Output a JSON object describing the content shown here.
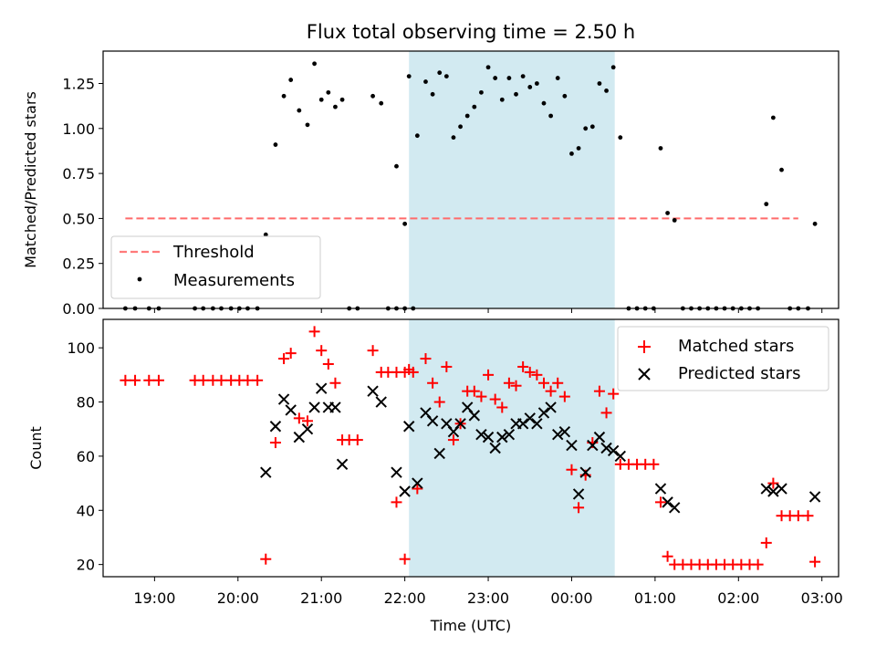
{
  "title": "Flux total observing time = 2.50 h",
  "colors": {
    "shade": "#add8e6",
    "threshold": "#ff6b6b",
    "measurement": "#000000",
    "matched": "#ff0000",
    "predicted": "#000000"
  },
  "chart_data": [
    {
      "type": "scatter",
      "ylabel": "Matched/Predicted stars",
      "xlabel": "",
      "xlim": [
        "18:23",
        "03:12"
      ],
      "ylim": [
        0,
        1.43
      ],
      "yticks": [
        "0.00",
        "0.25",
        "0.50",
        "0.75",
        "1.00",
        "1.25"
      ],
      "grid": false,
      "legend_position": "lower-left",
      "shaded_span": [
        "22:03",
        "00:31"
      ],
      "threshold": {
        "name": "Threshold",
        "value": 0.5,
        "x_range": [
          "18:39",
          "02:43"
        ]
      },
      "series": [
        {
          "name": "Measurements",
          "points": [
            [
              "18:39",
              0
            ],
            [
              "18:46",
              0
            ],
            [
              "18:56",
              0
            ],
            [
              "19:03",
              0
            ],
            [
              "19:29",
              0
            ],
            [
              "19:35",
              0
            ],
            [
              "19:42",
              0
            ],
            [
              "19:48",
              0
            ],
            [
              "19:55",
              0
            ],
            [
              "20:01",
              0
            ],
            [
              "20:07",
              0
            ],
            [
              "20:14",
              0
            ],
            [
              "20:20",
              0.41
            ],
            [
              "20:27",
              0.91
            ],
            [
              "20:33",
              1.18
            ],
            [
              "20:38",
              1.27
            ],
            [
              "20:44",
              1.1
            ],
            [
              "20:50",
              1.02
            ],
            [
              "20:55",
              1.36
            ],
            [
              "21:00",
              1.16
            ],
            [
              "21:05",
              1.2
            ],
            [
              "21:10",
              1.12
            ],
            [
              "21:15",
              1.16
            ],
            [
              "21:20",
              0
            ],
            [
              "21:26",
              0
            ],
            [
              "21:37",
              1.18
            ],
            [
              "21:43",
              1.14
            ],
            [
              "21:48",
              0
            ],
            [
              "21:54",
              0
            ],
            [
              "22:00",
              0
            ],
            [
              "22:06",
              0
            ],
            [
              "21:54",
              0.79
            ],
            [
              "22:00",
              0.47
            ],
            [
              "22:03",
              1.29
            ],
            [
              "22:09",
              0.96
            ],
            [
              "22:15",
              1.26
            ],
            [
              "22:20",
              1.19
            ],
            [
              "22:25",
              1.31
            ],
            [
              "22:30",
              1.29
            ],
            [
              "22:35",
              0.95
            ],
            [
              "22:40",
              1.01
            ],
            [
              "22:45",
              1.07
            ],
            [
              "22:50",
              1.12
            ],
            [
              "22:55",
              1.2
            ],
            [
              "23:00",
              1.34
            ],
            [
              "23:05",
              1.28
            ],
            [
              "23:10",
              1.16
            ],
            [
              "23:15",
              1.28
            ],
            [
              "23:20",
              1.19
            ],
            [
              "23:25",
              1.29
            ],
            [
              "23:30",
              1.23
            ],
            [
              "23:35",
              1.25
            ],
            [
              "23:40",
              1.14
            ],
            [
              "23:45",
              1.07
            ],
            [
              "23:50",
              1.28
            ],
            [
              "23:55",
              1.18
            ],
            [
              "00:00",
              0.86
            ],
            [
              "00:05",
              0.89
            ],
            [
              "00:10",
              1.0
            ],
            [
              "00:15",
              1.01
            ],
            [
              "00:20",
              1.25
            ],
            [
              "00:25",
              1.21
            ],
            [
              "00:30",
              1.34
            ],
            [
              "00:35",
              0.95
            ],
            [
              "00:41",
              0
            ],
            [
              "00:47",
              0
            ],
            [
              "00:53",
              0
            ],
            [
              "00:59",
              0
            ],
            [
              "01:04",
              0.89
            ],
            [
              "01:09",
              0.53
            ],
            [
              "01:14",
              0.49
            ],
            [
              "01:20",
              0
            ],
            [
              "01:26",
              0
            ],
            [
              "01:32",
              0
            ],
            [
              "01:38",
              0
            ],
            [
              "01:44",
              0
            ],
            [
              "01:50",
              0
            ],
            [
              "01:56",
              0
            ],
            [
              "02:02",
              0
            ],
            [
              "02:08",
              0
            ],
            [
              "02:14",
              0
            ],
            [
              "02:20",
              0.58
            ],
            [
              "02:25",
              1.06
            ],
            [
              "02:31",
              0.77
            ],
            [
              "02:37",
              0
            ],
            [
              "02:43",
              0
            ],
            [
              "02:50",
              0
            ],
            [
              "02:55",
              0.47
            ]
          ]
        }
      ]
    },
    {
      "type": "scatter",
      "ylabel": "Count",
      "xlabel": "Time (UTC)",
      "xlim": [
        "18:23",
        "03:12"
      ],
      "ylim": [
        15.5,
        110.5
      ],
      "yticks": [
        "20",
        "40",
        "60",
        "80",
        "100"
      ],
      "xticks": [
        "19:00",
        "20:00",
        "21:00",
        "22:00",
        "23:00",
        "00:00",
        "01:00",
        "02:00",
        "03:00"
      ],
      "grid": false,
      "legend_position": "upper-right",
      "shaded_span": [
        "22:03",
        "00:31"
      ],
      "series": [
        {
          "name": "Matched stars",
          "marker": "+",
          "points": [
            [
              "18:39",
              88
            ],
            [
              "18:46",
              88
            ],
            [
              "18:56",
              88
            ],
            [
              "19:03",
              88
            ],
            [
              "19:29",
              88
            ],
            [
              "19:35",
              88
            ],
            [
              "19:42",
              88
            ],
            [
              "19:48",
              88
            ],
            [
              "19:55",
              88
            ],
            [
              "20:01",
              88
            ],
            [
              "20:07",
              88
            ],
            [
              "20:14",
              88
            ],
            [
              "20:20",
              22
            ],
            [
              "20:27",
              65
            ],
            [
              "20:33",
              96
            ],
            [
              "20:38",
              98
            ],
            [
              "20:44",
              74
            ],
            [
              "20:50",
              73
            ],
            [
              "20:55",
              106
            ],
            [
              "21:00",
              99
            ],
            [
              "21:05",
              94
            ],
            [
              "21:10",
              87
            ],
            [
              "21:15",
              66
            ],
            [
              "21:20",
              66
            ],
            [
              "21:26",
              66
            ],
            [
              "21:37",
              99
            ],
            [
              "21:43",
              91
            ],
            [
              "21:48",
              91
            ],
            [
              "21:54",
              91
            ],
            [
              "22:00",
              91
            ],
            [
              "22:06",
              91
            ],
            [
              "21:54",
              43
            ],
            [
              "22:00",
              22
            ],
            [
              "22:03",
              92
            ],
            [
              "22:09",
              48
            ],
            [
              "22:15",
              96
            ],
            [
              "22:20",
              87
            ],
            [
              "22:25",
              80
            ],
            [
              "22:30",
              93
            ],
            [
              "22:35",
              66
            ],
            [
              "22:40",
              72
            ],
            [
              "22:45",
              84
            ],
            [
              "22:50",
              84
            ],
            [
              "22:55",
              82
            ],
            [
              "23:00",
              90
            ],
            [
              "23:05",
              81
            ],
            [
              "23:10",
              78
            ],
            [
              "23:15",
              87
            ],
            [
              "23:20",
              86
            ],
            [
              "23:25",
              93
            ],
            [
              "23:30",
              91
            ],
            [
              "23:35",
              90
            ],
            [
              "23:40",
              87
            ],
            [
              "23:45",
              84
            ],
            [
              "23:50",
              87
            ],
            [
              "23:55",
              82
            ],
            [
              "00:00",
              55
            ],
            [
              "00:05",
              41
            ],
            [
              "00:10",
              53
            ],
            [
              "00:15",
              65
            ],
            [
              "00:20",
              84
            ],
            [
              "00:25",
              76
            ],
            [
              "00:30",
              83
            ],
            [
              "00:35",
              57
            ],
            [
              "00:41",
              57
            ],
            [
              "00:47",
              57
            ],
            [
              "00:53",
              57
            ],
            [
              "00:59",
              57
            ],
            [
              "01:04",
              43
            ],
            [
              "01:09",
              23
            ],
            [
              "01:14",
              20
            ],
            [
              "01:20",
              20
            ],
            [
              "01:26",
              20
            ],
            [
              "01:32",
              20
            ],
            [
              "01:38",
              20
            ],
            [
              "01:44",
              20
            ],
            [
              "01:50",
              20
            ],
            [
              "01:56",
              20
            ],
            [
              "02:02",
              20
            ],
            [
              "02:08",
              20
            ],
            [
              "02:14",
              20
            ],
            [
              "02:20",
              28
            ],
            [
              "02:25",
              50
            ],
            [
              "02:31",
              38
            ],
            [
              "02:37",
              38
            ],
            [
              "02:43",
              38
            ],
            [
              "02:50",
              38
            ],
            [
              "02:55",
              21
            ]
          ]
        },
        {
          "name": "Predicted stars",
          "marker": "x",
          "points": [
            [
              "20:20",
              54
            ],
            [
              "20:27",
              71
            ],
            [
              "20:33",
              81
            ],
            [
              "20:38",
              77
            ],
            [
              "20:44",
              67
            ],
            [
              "20:50",
              70
            ],
            [
              "20:55",
              78
            ],
            [
              "21:00",
              85
            ],
            [
              "21:05",
              78
            ],
            [
              "21:10",
              78
            ],
            [
              "21:15",
              57
            ],
            [
              "21:37",
              84
            ],
            [
              "21:43",
              80
            ],
            [
              "21:54",
              54
            ],
            [
              "22:00",
              47
            ],
            [
              "22:03",
              71
            ],
            [
              "22:09",
              50
            ],
            [
              "22:15",
              76
            ],
            [
              "22:20",
              73
            ],
            [
              "22:25",
              61
            ],
            [
              "22:30",
              72
            ],
            [
              "22:35",
              69
            ],
            [
              "22:40",
              72
            ],
            [
              "22:45",
              78
            ],
            [
              "22:50",
              75
            ],
            [
              "22:55",
              68
            ],
            [
              "23:00",
              67
            ],
            [
              "23:05",
              63
            ],
            [
              "23:10",
              67
            ],
            [
              "23:15",
              68
            ],
            [
              "23:20",
              72
            ],
            [
              "23:25",
              72
            ],
            [
              "23:30",
              74
            ],
            [
              "23:35",
              72
            ],
            [
              "23:40",
              76
            ],
            [
              "23:45",
              78
            ],
            [
              "23:50",
              68
            ],
            [
              "23:55",
              69
            ],
            [
              "00:00",
              64
            ],
            [
              "00:05",
              46
            ],
            [
              "00:10",
              54
            ],
            [
              "00:15",
              64
            ],
            [
              "00:20",
              67
            ],
            [
              "00:25",
              63
            ],
            [
              "00:30",
              62
            ],
            [
              "00:35",
              60
            ],
            [
              "01:04",
              48
            ],
            [
              "01:09",
              43
            ],
            [
              "01:14",
              41
            ],
            [
              "02:20",
              48
            ],
            [
              "02:25",
              47
            ],
            [
              "02:31",
              48
            ],
            [
              "02:55",
              45
            ]
          ]
        }
      ]
    }
  ]
}
